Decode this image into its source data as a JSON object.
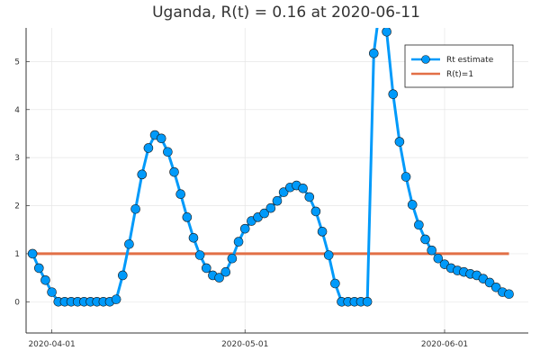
{
  "chart_data": {
    "type": "line",
    "title": "Uganda, R(t) = 0.16 at 2020-06-11",
    "xlabel": "",
    "ylabel": "",
    "x_tick_labels": [
      "2020-04-01",
      "2020-05-01",
      "2020-06-01"
    ],
    "y_tick_labels": [
      "0",
      "1",
      "2",
      "3",
      "4",
      "5"
    ],
    "x_range": [
      "2020-03-28",
      "2020-06-14"
    ],
    "ylim": [
      -0.65,
      5.7
    ],
    "grid": true,
    "legend": "top-right",
    "series": [
      {
        "name": "Rt estimate",
        "color": "#009AFA",
        "marker": "circle",
        "points": [
          [
            "2020-03-29",
            1.0
          ],
          [
            "2020-03-30",
            0.7
          ],
          [
            "2020-03-31",
            0.45
          ],
          [
            "2020-04-01",
            0.2
          ],
          [
            "2020-04-02",
            0.0
          ],
          [
            "2020-04-03",
            0.0
          ],
          [
            "2020-04-04",
            0.0
          ],
          [
            "2020-04-05",
            0.0
          ],
          [
            "2020-04-06",
            0.0
          ],
          [
            "2020-04-07",
            0.0
          ],
          [
            "2020-04-08",
            0.0
          ],
          [
            "2020-04-09",
            0.0
          ],
          [
            "2020-04-10",
            0.0
          ],
          [
            "2020-04-11",
            0.05
          ],
          [
            "2020-04-12",
            0.55
          ],
          [
            "2020-04-13",
            1.2
          ],
          [
            "2020-04-14",
            1.93
          ],
          [
            "2020-04-15",
            2.65
          ],
          [
            "2020-04-16",
            3.2
          ],
          [
            "2020-04-17",
            3.47
          ],
          [
            "2020-04-18",
            3.4
          ],
          [
            "2020-04-19",
            3.12
          ],
          [
            "2020-04-20",
            2.7
          ],
          [
            "2020-04-21",
            2.24
          ],
          [
            "2020-04-22",
            1.76
          ],
          [
            "2020-04-23",
            1.33
          ],
          [
            "2020-04-24",
            0.97
          ],
          [
            "2020-04-25",
            0.7
          ],
          [
            "2020-04-26",
            0.55
          ],
          [
            "2020-04-27",
            0.5
          ],
          [
            "2020-04-28",
            0.62
          ],
          [
            "2020-04-29",
            0.9
          ],
          [
            "2020-04-30",
            1.25
          ],
          [
            "2020-05-01",
            1.52
          ],
          [
            "2020-05-02",
            1.68
          ],
          [
            "2020-05-03",
            1.76
          ],
          [
            "2020-05-04",
            1.84
          ],
          [
            "2020-05-05",
            1.95
          ],
          [
            "2020-05-06",
            2.1
          ],
          [
            "2020-05-07",
            2.28
          ],
          [
            "2020-05-08",
            2.38
          ],
          [
            "2020-05-09",
            2.42
          ],
          [
            "2020-05-10",
            2.36
          ],
          [
            "2020-05-11",
            2.18
          ],
          [
            "2020-05-12",
            1.88
          ],
          [
            "2020-05-13",
            1.46
          ],
          [
            "2020-05-14",
            0.97
          ],
          [
            "2020-05-15",
            0.38
          ],
          [
            "2020-05-16",
            0.0
          ],
          [
            "2020-05-17",
            0.0
          ],
          [
            "2020-05-18",
            0.0
          ],
          [
            "2020-05-19",
            0.0
          ],
          [
            "2020-05-20",
            0.0
          ],
          [
            "2020-05-21",
            5.17
          ],
          [
            "2020-05-22",
            6.2
          ],
          [
            "2020-05-23",
            5.62
          ],
          [
            "2020-05-24",
            4.32
          ],
          [
            "2020-05-25",
            3.33
          ],
          [
            "2020-05-26",
            2.6
          ],
          [
            "2020-05-27",
            2.02
          ],
          [
            "2020-05-28",
            1.6
          ],
          [
            "2020-05-29",
            1.3
          ],
          [
            "2020-05-30",
            1.07
          ],
          [
            "2020-05-31",
            0.9
          ],
          [
            "2020-06-01",
            0.78
          ],
          [
            "2020-06-02",
            0.7
          ],
          [
            "2020-06-03",
            0.65
          ],
          [
            "2020-06-04",
            0.62
          ],
          [
            "2020-06-05",
            0.58
          ],
          [
            "2020-06-06",
            0.55
          ],
          [
            "2020-06-07",
            0.48
          ],
          [
            "2020-06-08",
            0.4
          ],
          [
            "2020-06-09",
            0.3
          ],
          [
            "2020-06-10",
            0.2
          ],
          [
            "2020-06-11",
            0.16
          ]
        ]
      },
      {
        "name": "R(t)=1",
        "color": "#E26F46",
        "marker": "none",
        "points": [
          [
            "2020-03-29",
            1.0
          ],
          [
            "2020-06-11",
            1.0
          ]
        ]
      }
    ]
  }
}
